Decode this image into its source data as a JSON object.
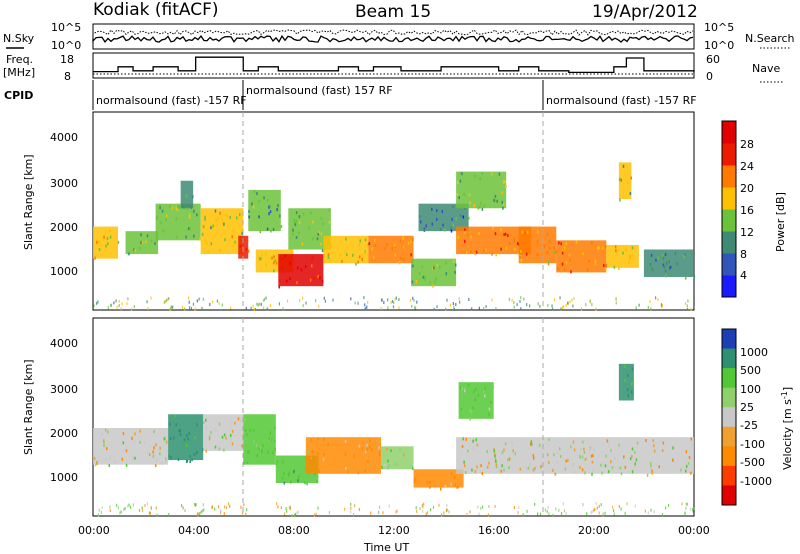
{
  "header": {
    "station": "Kodiak (fitACF)",
    "beam": "Beam 15",
    "date": "19/Apr/2012"
  },
  "top_panels": {
    "noise": {
      "left_label": "N.Sky",
      "right_label": "N.Search",
      "left_ticks": [
        "10^5",
        "10^0"
      ],
      "right_ticks": [
        "10^5",
        "10^0"
      ]
    },
    "freq": {
      "left_label_1": "Freq.",
      "left_label_2": "[MHz]",
      "right_label": "Nave",
      "left_ticks": [
        "18",
        "8"
      ],
      "right_ticks": [
        "60",
        "0"
      ]
    },
    "cpid": {
      "label": "CPID",
      "segments": [
        {
          "text": "normalsound (fast) -157 RF",
          "start_h": 0
        },
        {
          "text": "normalsound (fast) 157 RF",
          "start_h": 6
        },
        {
          "text": "normalsound (fast) -157 RF",
          "start_h": 18
        }
      ]
    }
  },
  "axes": {
    "ylabel": "Slant Range [km]",
    "xlabel": "Time UT",
    "xticks": [
      "00:00",
      "04:00",
      "08:00",
      "12:00",
      "16:00",
      "20:00",
      "00:00"
    ],
    "yticks": [
      "1000",
      "2000",
      "3000",
      "4000"
    ]
  },
  "power_colorbar": {
    "label": "Power [dB]",
    "ticks": [
      "4",
      "8",
      "12",
      "16",
      "20",
      "24",
      "28"
    ],
    "colors": [
      "#1a1aff",
      "#2f56b8",
      "#3e8a74",
      "#6cc23a",
      "#ffc000",
      "#ff7a00",
      "#ee1a00",
      "#e00000"
    ]
  },
  "velocity_colorbar": {
    "label": "Velocity [m s",
    "label_sup": "-1",
    "label_end": "]",
    "ticks": [
      "1000",
      "500",
      "100",
      "25",
      "-25",
      "-100",
      "-500",
      "-1000"
    ],
    "colors": [
      "#1e3fb4",
      "#2e9070",
      "#52c834",
      "#8fd06c",
      "#c8c8c8",
      "#f0a030",
      "#ff8a00",
      "#ff3c00",
      "#e00000"
    ]
  },
  "chart_data": [
    {
      "type": "heatmap",
      "title": "Power [dB]",
      "xlabel": "Time UT",
      "ylabel": "Slant Range [km]",
      "xlim_hours": [
        0,
        24
      ],
      "ylim_km": [
        180,
        4500
      ],
      "blobs": [
        {
          "t0": 0.0,
          "t1": 1.0,
          "r0": 1300,
          "r1": 2000,
          "power": 18
        },
        {
          "t0": 1.3,
          "t1": 2.6,
          "r0": 1400,
          "r1": 1900,
          "power": 14
        },
        {
          "t0": 2.5,
          "t1": 4.3,
          "r0": 1700,
          "r1": 2500,
          "power": 14
        },
        {
          "t0": 3.5,
          "t1": 4.0,
          "r0": 2400,
          "r1": 3000,
          "power": 10
        },
        {
          "t0": 4.3,
          "t1": 6.0,
          "r0": 1400,
          "r1": 2400,
          "power": 16
        },
        {
          "t0": 5.8,
          "t1": 6.2,
          "r0": 1300,
          "r1": 1800,
          "power": 24
        },
        {
          "t0": 6.2,
          "t1": 7.5,
          "r0": 1900,
          "r1": 2800,
          "power": 12
        },
        {
          "t0": 6.5,
          "t1": 8.0,
          "r0": 1000,
          "r1": 1500,
          "power": 18
        },
        {
          "t0": 7.4,
          "t1": 9.2,
          "r0": 700,
          "r1": 1400,
          "power": 28
        },
        {
          "t0": 7.8,
          "t1": 9.5,
          "r0": 1500,
          "r1": 2400,
          "power": 14
        },
        {
          "t0": 9.2,
          "t1": 11.0,
          "r0": 1200,
          "r1": 1800,
          "power": 18
        },
        {
          "t0": 11.0,
          "t1": 12.8,
          "r0": 1200,
          "r1": 1800,
          "power": 20
        },
        {
          "t0": 12.7,
          "t1": 14.5,
          "r0": 700,
          "r1": 1300,
          "power": 14
        },
        {
          "t0": 13.0,
          "t1": 15.0,
          "r0": 1900,
          "r1": 2500,
          "power": 8
        },
        {
          "t0": 14.5,
          "t1": 16.5,
          "r0": 2400,
          "r1": 3200,
          "power": 14
        },
        {
          "t0": 14.5,
          "t1": 17.5,
          "r0": 1400,
          "r1": 2000,
          "power": 22
        },
        {
          "t0": 17.0,
          "t1": 18.5,
          "r0": 1200,
          "r1": 2000,
          "power": 20
        },
        {
          "t0": 18.5,
          "t1": 20.5,
          "r0": 1000,
          "r1": 1700,
          "power": 22
        },
        {
          "t0": 20.5,
          "t1": 21.8,
          "r0": 1100,
          "r1": 1600,
          "power": 18
        },
        {
          "t0": 21.0,
          "t1": 21.5,
          "r0": 2600,
          "r1": 3400,
          "power": 16
        },
        {
          "t0": 22.0,
          "t1": 24.0,
          "r0": 900,
          "r1": 1500,
          "power": 10
        }
      ]
    },
    {
      "type": "heatmap",
      "title": "Velocity [m s-1]",
      "xlabel": "Time UT",
      "ylabel": "Slant Range [km]",
      "xlim_hours": [
        0,
        24
      ],
      "ylim_km": [
        180,
        4500
      ],
      "blobs": [
        {
          "t0": 0.0,
          "t1": 3.0,
          "r0": 1300,
          "r1": 2100,
          "velocity": 0
        },
        {
          "t0": 3.0,
          "t1": 4.4,
          "r0": 1400,
          "r1": 2400,
          "velocity": 600
        },
        {
          "t0": 4.4,
          "t1": 6.0,
          "r0": 1600,
          "r1": 2400,
          "velocity": 0
        },
        {
          "t0": 6.0,
          "t1": 7.3,
          "r0": 1300,
          "r1": 2400,
          "velocity": 200
        },
        {
          "t0": 7.3,
          "t1": 9.0,
          "r0": 900,
          "r1": 1500,
          "velocity": 400
        },
        {
          "t0": 8.5,
          "t1": 11.5,
          "r0": 1100,
          "r1": 1900,
          "velocity": -120
        },
        {
          "t0": 11.5,
          "t1": 12.8,
          "r0": 1200,
          "r1": 1700,
          "velocity": 60
        },
        {
          "t0": 12.8,
          "t1": 14.8,
          "r0": 800,
          "r1": 1200,
          "velocity": -120
        },
        {
          "t0": 14.6,
          "t1": 16.0,
          "r0": 2300,
          "r1": 3100,
          "velocity": 120
        },
        {
          "t0": 14.5,
          "t1": 24.0,
          "r0": 1100,
          "r1": 1900,
          "velocity": 0
        },
        {
          "t0": 21.0,
          "t1": 21.6,
          "r0": 2700,
          "r1": 3500,
          "velocity": 500
        }
      ]
    },
    {
      "type": "line",
      "title": "Freq. [MHz]",
      "x_hours": [
        0,
        1,
        1.6,
        2.4,
        3.4,
        4.1,
        6.0,
        6.6,
        7.4,
        9.8,
        10.6,
        11.2,
        12.3,
        13.9,
        16.2,
        17.0,
        17.8,
        19.0,
        20.8,
        21.3,
        22.0,
        24.0
      ],
      "y": [
        9.5,
        12.5,
        10,
        12.5,
        10,
        18.5,
        10,
        12.5,
        10,
        12.5,
        10,
        12.5,
        10,
        12.5,
        10,
        12.5,
        10,
        9,
        12.5,
        18,
        10,
        9
      ]
    }
  ]
}
